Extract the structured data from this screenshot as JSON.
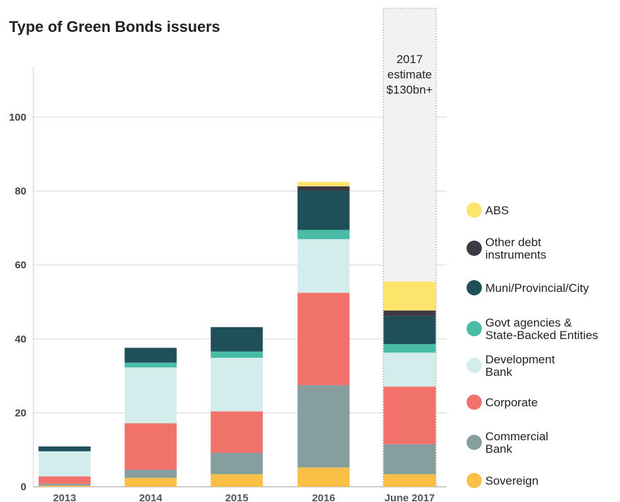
{
  "chart_data": {
    "type": "bar",
    "stacked": true,
    "title": "Type of Green Bonds issuers",
    "xlabel": "",
    "ylabel": "",
    "ylim": [
      0,
      110
    ],
    "yticks": [
      0,
      20,
      40,
      60,
      80,
      100
    ],
    "grid": true,
    "legend_position": "right",
    "categories": [
      "2013",
      "2014",
      "2015",
      "2016",
      "June 2017"
    ],
    "series": [
      {
        "name": "Sovereign",
        "color": "#fbbf48",
        "values": [
          0.3,
          2.4,
          3.4,
          5.2,
          3.4
        ]
      },
      {
        "name": "Commercial Bank",
        "color": "#869f9e",
        "values": [
          0.5,
          2.2,
          5.8,
          22.3,
          8.1
        ]
      },
      {
        "name": "Corporate",
        "color": "#f0726a",
        "values": [
          2.0,
          12.6,
          11.2,
          25.0,
          15.6
        ]
      },
      {
        "name": "Development Bank",
        "color": "#d3ecec",
        "values": [
          6.8,
          15.1,
          14.5,
          14.5,
          9.2
        ]
      },
      {
        "name": "Govt agencies & State-Backed Entities",
        "color": "#48bca6",
        "values": [
          0,
          1.3,
          1.7,
          2.5,
          2.3
        ]
      },
      {
        "name": "Muni/Provincial/City",
        "color": "#1f4f59",
        "values": [
          1.3,
          4.0,
          6.6,
          10.6,
          7.6
        ]
      },
      {
        "name": "Other debt instruments",
        "color": "#3d3a45",
        "values": [
          0,
          0,
          0,
          1.2,
          1.5
        ]
      },
      {
        "name": "ABS",
        "color": "#fde46c",
        "values": [
          0,
          0,
          0,
          1.2,
          7.8
        ]
      }
    ],
    "annotation": {
      "category": "June 2017",
      "lines": [
        "2017",
        "estimate",
        "$130bn+"
      ]
    }
  }
}
